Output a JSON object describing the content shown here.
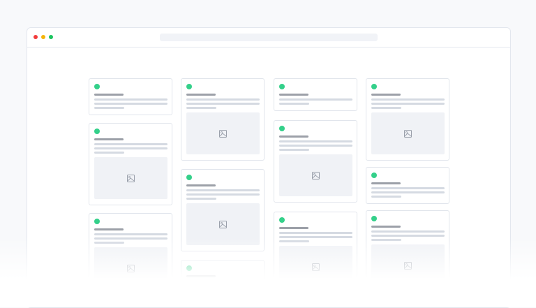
{
  "window": {
    "traffic_lights": [
      "#f23b3b",
      "#f5b40a",
      "#1bc45e"
    ],
    "accent": "#34d08a"
  },
  "columns": [
    [
      "text",
      "image",
      "image"
    ],
    [
      "image",
      "image",
      "text"
    ],
    [
      "short",
      "image",
      "image"
    ],
    [
      "image",
      "text",
      "image"
    ]
  ]
}
